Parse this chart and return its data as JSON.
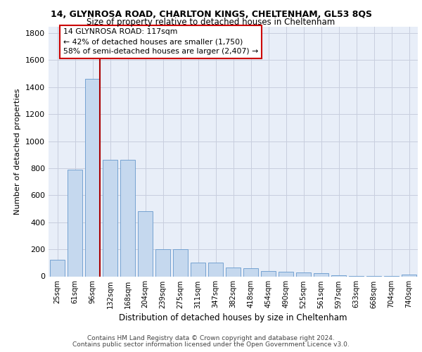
{
  "title1": "14, GLYNROSA ROAD, CHARLTON KINGS, CHELTENHAM, GL53 8QS",
  "title2": "Size of property relative to detached houses in Cheltenham",
  "xlabel": "Distribution of detached houses by size in Cheltenham",
  "ylabel": "Number of detached properties",
  "categories": [
    "25sqm",
    "61sqm",
    "96sqm",
    "132sqm",
    "168sqm",
    "204sqm",
    "239sqm",
    "275sqm",
    "311sqm",
    "347sqm",
    "382sqm",
    "418sqm",
    "454sqm",
    "490sqm",
    "525sqm",
    "561sqm",
    "597sqm",
    "633sqm",
    "668sqm",
    "704sqm",
    "740sqm"
  ],
  "values": [
    120,
    790,
    1460,
    860,
    860,
    480,
    200,
    200,
    100,
    100,
    65,
    60,
    40,
    35,
    30,
    25,
    10,
    5,
    5,
    5,
    15
  ],
  "bar_color": "#c5d8ee",
  "bar_edge_color": "#6699cc",
  "vline_pos": 2.4,
  "vline_color": "#aa0000",
  "annotation_line1": "14 GLYNROSA ROAD: 117sqm",
  "annotation_line2": "← 42% of detached houses are smaller (1,750)",
  "annotation_line3": "58% of semi-detached houses are larger (2,407) →",
  "annotation_box_color": "#cc0000",
  "ylim": [
    0,
    1850
  ],
  "yticks": [
    0,
    200,
    400,
    600,
    800,
    1000,
    1200,
    1400,
    1600,
    1800
  ],
  "grid_color": "#c8cede",
  "background_color": "#e8eef8",
  "footer1": "Contains HM Land Registry data © Crown copyright and database right 2024.",
  "footer2": "Contains public sector information licensed under the Open Government Licence v3.0."
}
